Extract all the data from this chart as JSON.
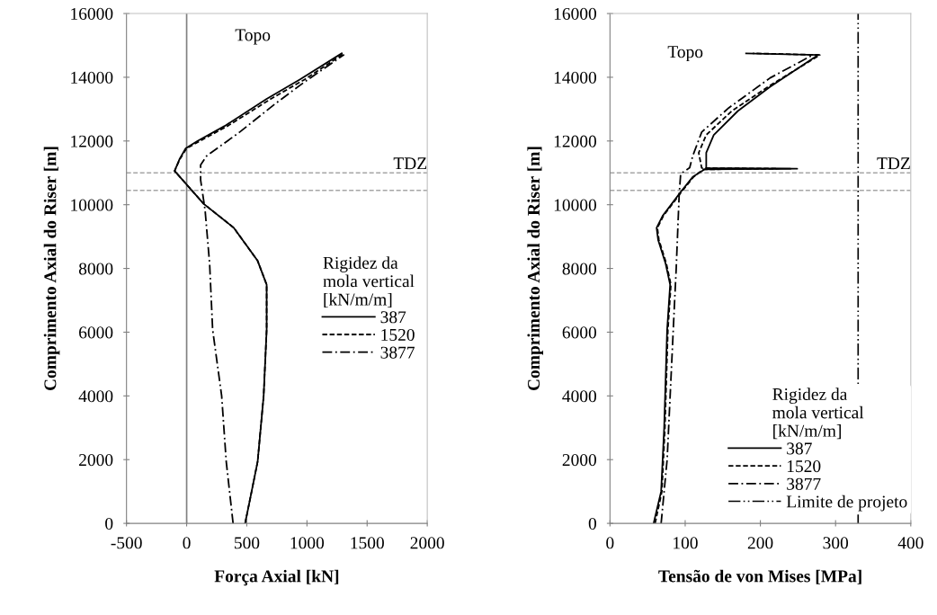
{
  "chart_data": [
    {
      "type": "line",
      "xlabel": "Força Axial [kN]",
      "ylabel": "Comprimento Axial do Riser [m]",
      "legend_title": "Rigidez da\nmola vertical\n[kN/m/m]",
      "legend": "right",
      "grid": false,
      "xlim": [
        -500,
        2000
      ],
      "xticks": [
        -500,
        0,
        500,
        1000,
        1500,
        2000
      ],
      "ylim": [
        0,
        16000
      ],
      "yticks": [
        0,
        2000,
        4000,
        6000,
        8000,
        10000,
        12000,
        14000,
        16000
      ],
      "series": [
        {
          "name": "387",
          "color": "#000000",
          "line_style": "solid",
          "x": [
            486,
            540,
            590,
            640,
            665,
            665,
            590,
            391,
            141,
            -100,
            -58,
            -8,
            91,
            316,
            665,
            940,
            1289
          ],
          "values": [
            0,
            1000,
            1940,
            4000,
            6080,
            7490,
            8240,
            9280,
            10030,
            11060,
            11440,
            11770,
            12000,
            12470,
            13320,
            13930,
            14750
          ]
        },
        {
          "name": "1520",
          "color": "#000000",
          "line_style": "dashed",
          "x": [
            486,
            540,
            590,
            640,
            665,
            665,
            590,
            391,
            141,
            -100,
            -55,
            0,
            110,
            340,
            700,
            980,
            1300
          ],
          "values": [
            0,
            1000,
            1940,
            4000,
            6080,
            7490,
            8240,
            9280,
            10030,
            11060,
            11440,
            11770,
            12000,
            12470,
            13320,
            13930,
            14730
          ]
        },
        {
          "name": "3877",
          "color": "#000000",
          "line_style": "dashdot",
          "x": [
            386,
            329,
            291,
            216,
            191,
            153,
            116,
            116,
            166,
            441,
            740,
            990,
            1309
          ],
          "values": [
            0,
            1940,
            4000,
            6080,
            8150,
            9840,
            10780,
            11250,
            11530,
            12280,
            13180,
            13880,
            14710
          ]
        }
      ],
      "ref_lines": [
        {
          "axis": "x",
          "value": 0,
          "color": "#808080",
          "line_style": "solid"
        },
        {
          "axis": "y",
          "value": 11000,
          "label": "TDZ",
          "color": "#a6a6a6",
          "line_style": "dashed"
        },
        {
          "axis": "y",
          "value": 10450,
          "color": "#a6a6a6",
          "line_style": "dashed"
        }
      ],
      "annotations": [
        "Topo"
      ]
    },
    {
      "type": "line",
      "xlabel": "Tensão de von Mises [MPa]",
      "ylabel": "Comprimento Axial do Riser [m]",
      "legend_title": "Rigidez da\nmola vertical\n[kN/m/m]",
      "legend": "lower right",
      "grid": false,
      "xlim": [
        0,
        400
      ],
      "xticks": [
        0,
        100,
        200,
        300,
        400
      ],
      "ylim": [
        0,
        16000
      ],
      "yticks": [
        0,
        2000,
        4000,
        6000,
        8000,
        10000,
        12000,
        14000,
        16000
      ],
      "series": [
        {
          "name": "387",
          "color": "#000000",
          "line_style": "solid",
          "x": [
            58,
            68,
            72,
            76,
            80,
            74,
            64,
            62,
            70,
            94,
            110,
            126,
            249,
            128,
            128,
            138,
            170,
            213,
            277,
            181
          ],
          "values": [
            0,
            1000,
            2970,
            6080,
            7490,
            8150,
            8900,
            9275,
            9650,
            10400,
            10870,
            11110,
            11130,
            11150,
            11630,
            12190,
            12940,
            13700,
            14700,
            14750
          ]
        },
        {
          "name": "1520",
          "color": "#000000",
          "line_style": "dashed",
          "x": [
            60,
            69,
            73,
            77,
            81,
            75,
            65,
            63,
            71,
            95,
            111,
            124,
            240,
            122,
            118,
            128,
            162,
            210,
            279,
            190
          ],
          "values": [
            0,
            1000,
            2970,
            6080,
            7490,
            8150,
            8900,
            9275,
            9650,
            10400,
            10870,
            11110,
            11130,
            11150,
            11630,
            12190,
            12940,
            13700,
            14700,
            14750
          ]
        },
        {
          "name": "3877",
          "color": "#000000",
          "line_style": "dashdot",
          "x": [
            68,
            76,
            82,
            86,
            88,
            92,
            94,
            106,
            110,
            122,
            158,
            213,
            269
          ],
          "values": [
            0,
            2000,
            5000,
            7000,
            7960,
            10310,
            10970,
            11160,
            11530,
            12280,
            13040,
            13980,
            14690
          ]
        }
      ],
      "ref_lines": [
        {
          "axis": "x",
          "value": 330,
          "label": "Limite de projeto",
          "color": "#000000",
          "line_style": "dashdotdot"
        },
        {
          "axis": "y",
          "value": 11000,
          "label": "TDZ",
          "color": "#a6a6a6",
          "line_style": "dashed"
        },
        {
          "axis": "y",
          "value": 10450,
          "color": "#a6a6a6",
          "line_style": "dashed"
        }
      ],
      "annotations": [
        "Topo"
      ]
    }
  ]
}
